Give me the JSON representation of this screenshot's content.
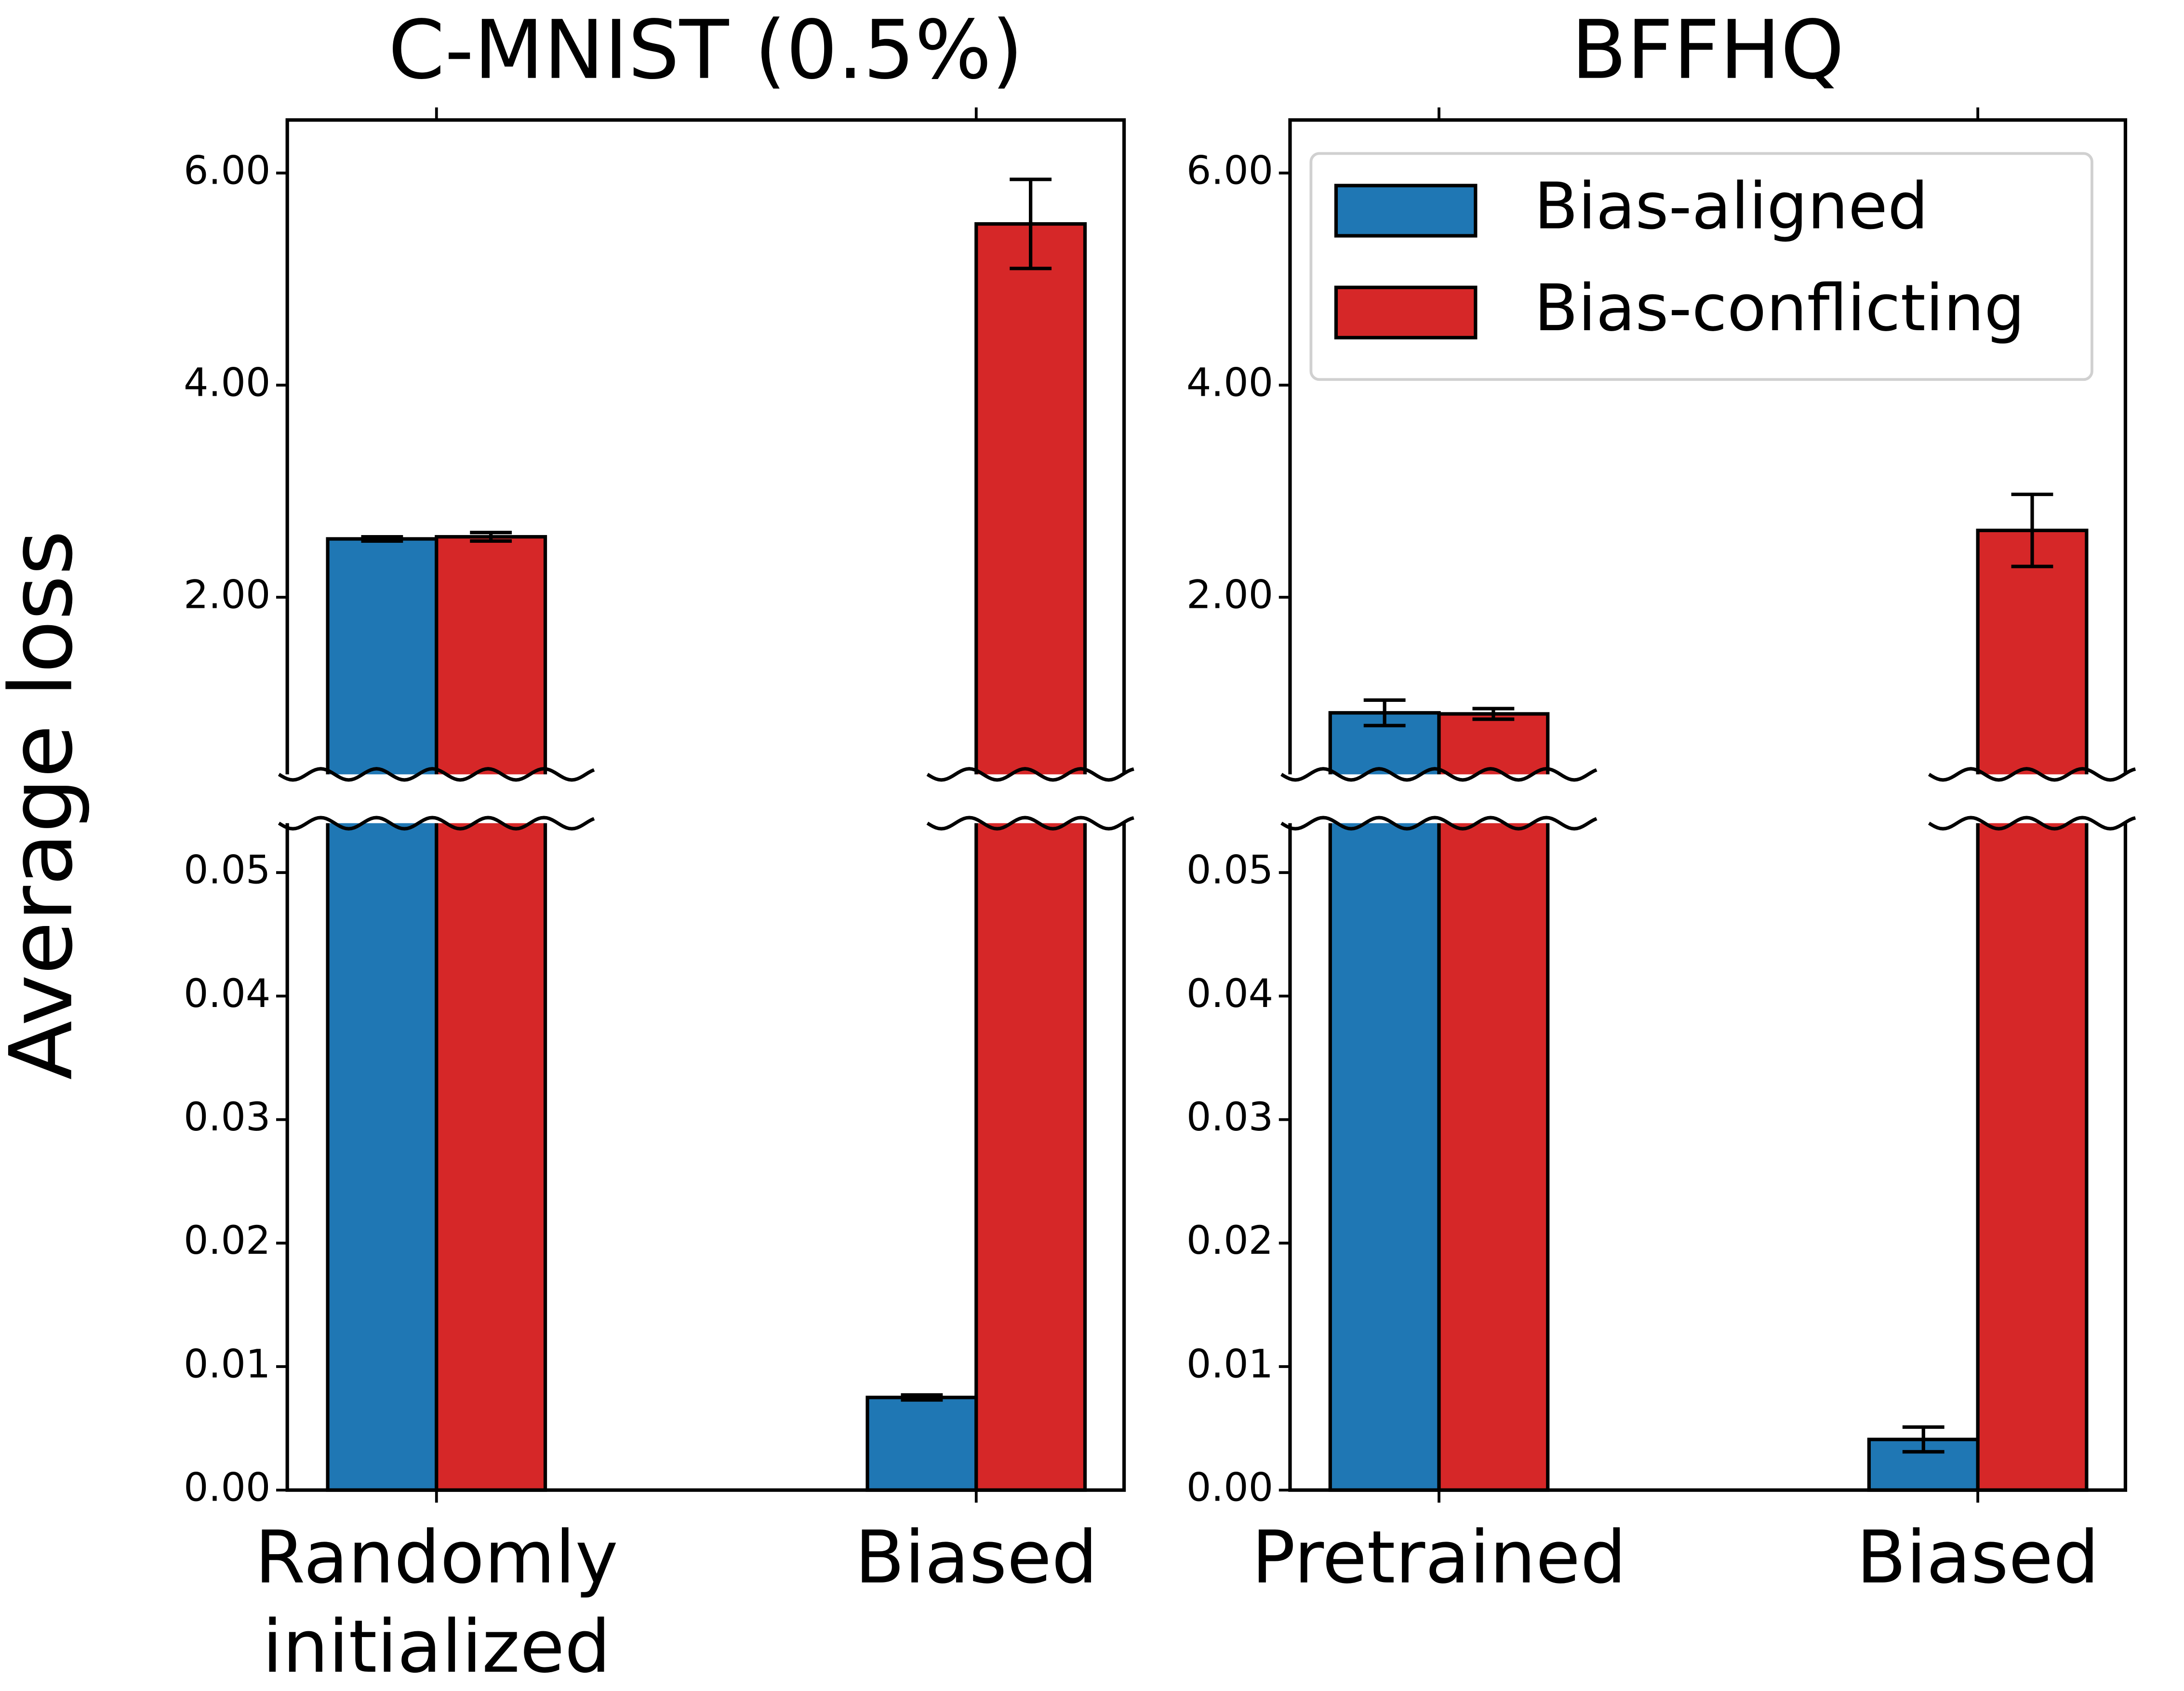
{
  "chart_data": [
    {
      "type": "bar",
      "title": "C-MNIST (0.5%)",
      "ylabel": "Average loss",
      "categories": [
        "Randomly\ninitialized",
        "Biased"
      ],
      "series": [
        {
          "name": "Bias-aligned",
          "color": "#1f77b4",
          "values": [
            2.55,
            0.0075
          ],
          "errors": [
            0.02,
            0.0002
          ]
        },
        {
          "name": "Bias-conflicting",
          "color": "#d62728",
          "values": [
            2.57,
            5.52
          ],
          "errors": [
            0.04,
            0.42
          ]
        }
      ],
      "ylim": [
        0,
        0.054
      ],
      "yticks": [
        {
          "value": 0,
          "label": "0.00"
        },
        {
          "value": 0.01,
          "label": "0.01"
        },
        {
          "value": 0.02,
          "label": "0.02"
        },
        {
          "value": 0.03,
          "label": "0.03"
        },
        {
          "value": 0.04,
          "label": "0.04"
        },
        {
          "value": 0.05,
          "label": "0.05"
        }
      ],
      "y2lim": [
        0.33,
        6.5
      ],
      "y2ticks": [
        {
          "value": 2,
          "label": "2.00"
        },
        {
          "value": 4,
          "label": "4.00"
        },
        {
          "value": 6,
          "label": "6.00"
        }
      ],
      "legend": false
    },
    {
      "type": "bar",
      "title": "BFFHQ",
      "categories": [
        "Pretrained",
        "Biased"
      ],
      "series": [
        {
          "name": "Bias-aligned",
          "color": "#1f77b4",
          "values": [
            0.91,
            0.0041
          ],
          "errors": [
            0.12,
            0.001
          ]
        },
        {
          "name": "Bias-conflicting",
          "color": "#d62728",
          "values": [
            0.9,
            2.63
          ],
          "errors": [
            0.05,
            0.34
          ]
        }
      ],
      "ylim": [
        0,
        0.054
      ],
      "yticks": [
        {
          "value": 0,
          "label": "0.00"
        },
        {
          "value": 0.01,
          "label": "0.01"
        },
        {
          "value": 0.02,
          "label": "0.02"
        },
        {
          "value": 0.03,
          "label": "0.03"
        },
        {
          "value": 0.04,
          "label": "0.04"
        },
        {
          "value": 0.05,
          "label": "0.05"
        }
      ],
      "y2lim": [
        0.33,
        6.5
      ],
      "y2ticks": [
        {
          "value": 2,
          "label": "2.00"
        },
        {
          "value": 4,
          "label": "4.00"
        },
        {
          "value": 6,
          "label": "6.00"
        }
      ],
      "legend": true,
      "legend_loc": "upper right"
    }
  ]
}
